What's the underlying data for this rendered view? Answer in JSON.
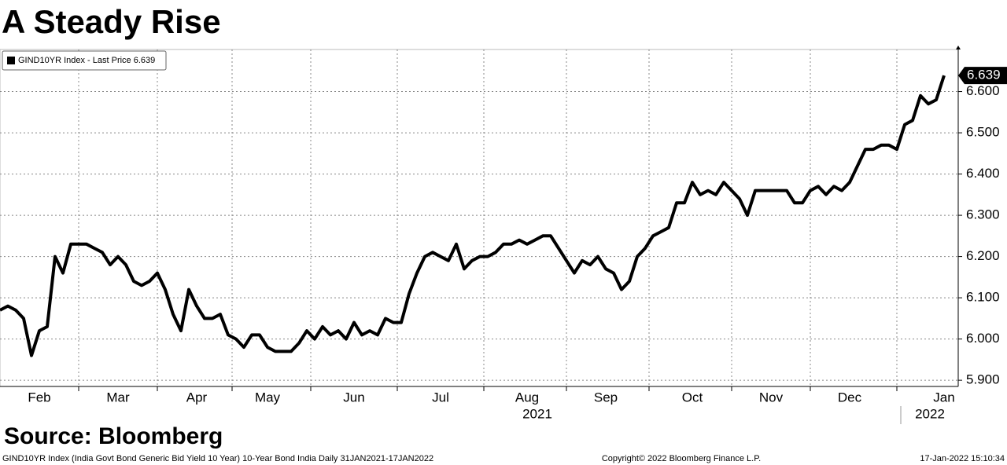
{
  "chart_data": {
    "type": "line",
    "title": "A Steady Rise",
    "source": "Source: Bloomberg",
    "footnote": "GIND10YR Index (India Govt Bond Generic Bid Yield 10 Year) 10-Year Bond India  Daily 31JAN2021-17JAN2022",
    "copyright": "Copyright© 2022 Bloomberg Finance L.P.",
    "timestamp": "17-Jan-2022 15:10:34",
    "years": [
      "2021",
      "2022"
    ],
    "categories": [
      null,
      null,
      null,
      null,
      null,
      "Feb",
      null,
      null,
      null,
      null,
      null,
      null,
      null,
      null,
      null,
      "Mar",
      null,
      null,
      null,
      null,
      null,
      null,
      null,
      null,
      null,
      "Apr",
      null,
      null,
      null,
      null,
      null,
      null,
      null,
      null,
      "May",
      null,
      null,
      null,
      null,
      null,
      null,
      null,
      null,
      null,
      null,
      "Jun",
      null,
      null,
      null,
      null,
      null,
      null,
      null,
      null,
      null,
      null,
      "Jul",
      null,
      null,
      null,
      null,
      null,
      null,
      null,
      null,
      null,
      null,
      "Aug",
      null,
      null,
      null,
      null,
      null,
      null,
      null,
      null,
      null,
      "Sep",
      null,
      null,
      null,
      null,
      null,
      null,
      null,
      null,
      null,
      null,
      "Oct",
      null,
      null,
      null,
      null,
      null,
      null,
      null,
      null,
      null,
      "Nov",
      null,
      null,
      null,
      null,
      null,
      null,
      null,
      null,
      null,
      "Dec",
      null,
      null,
      null,
      null,
      null,
      null,
      null,
      null,
      null,
      null,
      null,
      "Jan"
    ],
    "series": [
      {
        "name": "GIND10YR Index - Last Price 6.639",
        "color": "#000000",
        "values": [
          6.07,
          6.08,
          6.07,
          6.05,
          5.96,
          6.02,
          6.03,
          6.2,
          6.16,
          6.23,
          6.23,
          6.23,
          6.22,
          6.21,
          6.18,
          6.2,
          6.18,
          6.14,
          6.13,
          6.14,
          6.16,
          6.12,
          6.06,
          6.02,
          6.12,
          6.08,
          6.05,
          6.05,
          6.06,
          6.01,
          6.0,
          5.98,
          6.01,
          6.01,
          5.98,
          5.97,
          5.97,
          5.97,
          5.99,
          6.02,
          6.0,
          6.03,
          6.01,
          6.02,
          6.0,
          6.04,
          6.01,
          6.02,
          6.01,
          6.05,
          6.04,
          6.04,
          6.11,
          6.16,
          6.2,
          6.21,
          6.2,
          6.19,
          6.23,
          6.17,
          6.19,
          6.2,
          6.2,
          6.21,
          6.23,
          6.23,
          6.24,
          6.23,
          6.24,
          6.25,
          6.25,
          6.22,
          6.19,
          6.16,
          6.19,
          6.18,
          6.2,
          6.17,
          6.16,
          6.12,
          6.14,
          6.2,
          6.22,
          6.25,
          6.26,
          6.27,
          6.33,
          6.33,
          6.38,
          6.35,
          6.36,
          6.35,
          6.38,
          6.36,
          6.34,
          6.3,
          6.36,
          6.36,
          6.36,
          6.36,
          6.36,
          6.33,
          6.33,
          6.36,
          6.37,
          6.35,
          6.37,
          6.36,
          6.38,
          6.42,
          6.46,
          6.46,
          6.47,
          6.47,
          6.46,
          6.52,
          6.53,
          6.59,
          6.57,
          6.58,
          6.639
        ]
      }
    ],
    "ylim": [
      5.885,
      6.702
    ],
    "yticks": [
      {
        "value": 5.9,
        "label": "5.900"
      },
      {
        "value": 6.0,
        "label": "6.000"
      },
      {
        "value": 6.1,
        "label": "6.100"
      },
      {
        "value": 6.2,
        "label": "6.200"
      },
      {
        "value": 6.3,
        "label": "6.300"
      },
      {
        "value": 6.4,
        "label": "6.400"
      },
      {
        "value": 6.5,
        "label": "6.500"
      },
      {
        "value": 6.6,
        "label": "6.600"
      }
    ],
    "grid": true
  }
}
